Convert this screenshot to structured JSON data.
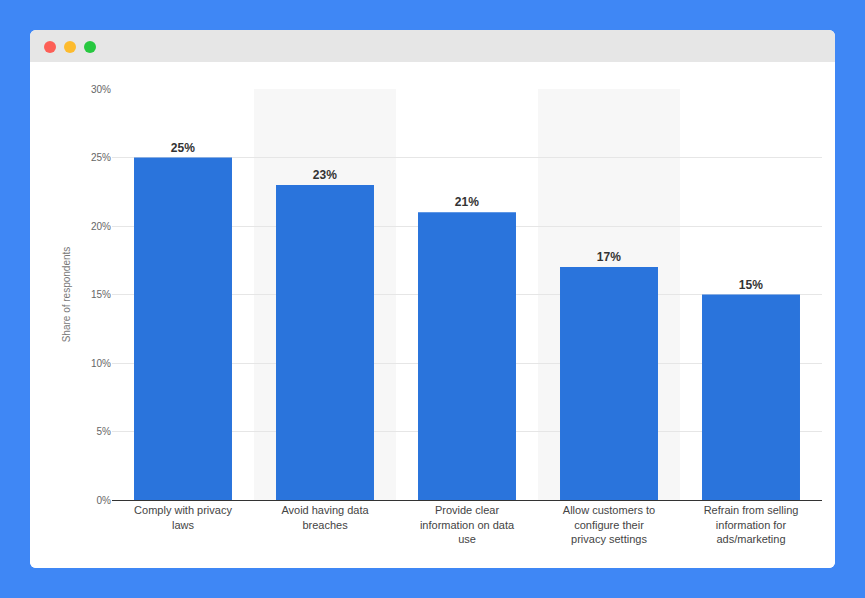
{
  "chart_data": {
    "type": "bar",
    "y_label": "Share of respondents",
    "categories": [
      "Comply with privacy laws",
      "Avoid having data breaches",
      "Provide clear information on data use",
      "Allow customers to configure their privacy settings",
      "Refrain from selling information for ads/marketing"
    ],
    "values": [
      25,
      23,
      21,
      17,
      15
    ],
    "value_labels": [
      "25%",
      "23%",
      "21%",
      "17%",
      "15%"
    ],
    "color": "#2a74dc",
    "ylim": [
      0,
      30
    ],
    "yticks": [
      {
        "value": 0,
        "label": "0%"
      },
      {
        "value": 5,
        "label": "5%"
      },
      {
        "value": 10,
        "label": "10%"
      },
      {
        "value": 15,
        "label": "15%"
      },
      {
        "value": 20,
        "label": "20%"
      },
      {
        "value": 25,
        "label": "25%"
      },
      {
        "value": 30,
        "label": "30%"
      }
    ],
    "grid": true,
    "data_labels": true
  }
}
